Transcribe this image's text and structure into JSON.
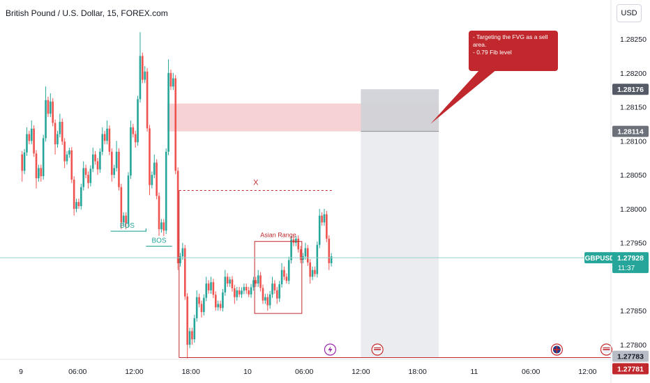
{
  "header": {
    "title": "British Pound / U.S. Dollar, 15, FOREX.com",
    "currency": "USD"
  },
  "chart_data": {
    "type": "candlestick",
    "symbol": "GBPUSD",
    "interval": "15",
    "ylim": [
      1.27715,
      1.28365
    ],
    "y_ticks": [
      "1.28250",
      "1.28200",
      "1.28150",
      "1.28100",
      "1.28050",
      "1.28000",
      "1.27950",
      "1.27850",
      "1.27800"
    ],
    "x_ticks": [
      {
        "label": "9",
        "bar": 0
      },
      {
        "label": "06:00",
        "bar": 24
      },
      {
        "label": "12:00",
        "bar": 48
      },
      {
        "label": "18:00",
        "bar": 72
      },
      {
        "label": "10",
        "bar": 96
      },
      {
        "label": "06:00",
        "bar": 120
      },
      {
        "label": "12:00",
        "bar": 144
      },
      {
        "label": "18:00",
        "bar": 168
      },
      {
        "label": "11",
        "bar": 192
      },
      {
        "label": "06:00",
        "bar": 216
      },
      {
        "label": "12:00",
        "bar": 240
      }
    ],
    "current": {
      "symbol": "GBPUSD",
      "price": "1.27928",
      "countdown": "11:37"
    },
    "price_labels": [
      {
        "value": "1.28176",
        "y": 1.28176,
        "color": "#555b66"
      },
      {
        "value": "1.28114",
        "y": 1.28114,
        "color": "#6b7079"
      },
      {
        "value": "1.27783",
        "y": 1.27783,
        "color": "#b8bcc4"
      },
      {
        "value": "1.27781",
        "y": 1.27781,
        "color": "#c0282d"
      }
    ],
    "candles_hourly": [
      {
        "t": 0,
        "o": 1.2808,
        "h": 1.2812,
        "l": 1.2804,
        "c": 1.281
      },
      {
        "t": 4,
        "o": 1.281,
        "h": 1.2813,
        "l": 1.2803,
        "c": 1.2806
      },
      {
        "t": 8,
        "o": 1.2806,
        "h": 1.2818,
        "l": 1.2804,
        "c": 1.2814
      },
      {
        "t": 12,
        "o": 1.2814,
        "h": 1.2817,
        "l": 1.2808,
        "c": 1.2811
      },
      {
        "t": 16,
        "o": 1.2811,
        "h": 1.2814,
        "l": 1.2806,
        "c": 1.2808
      },
      {
        "t": 20,
        "o": 1.2808,
        "h": 1.2809,
        "l": 1.2799,
        "c": 1.2801
      },
      {
        "t": 24,
        "o": 1.2801,
        "h": 1.2807,
        "l": 1.28,
        "c": 1.2805
      },
      {
        "t": 28,
        "o": 1.2805,
        "h": 1.2809,
        "l": 1.2803,
        "c": 1.2807
      },
      {
        "t": 32,
        "o": 1.2807,
        "h": 1.2812,
        "l": 1.2805,
        "c": 1.281
      },
      {
        "t": 36,
        "o": 1.281,
        "h": 1.2813,
        "l": 1.2804,
        "c": 1.2806
      },
      {
        "t": 40,
        "o": 1.2806,
        "h": 1.281,
        "l": 1.2797,
        "c": 1.2799
      },
      {
        "t": 44,
        "o": 1.2799,
        "h": 1.2813,
        "l": 1.2797,
        "c": 1.2811
      },
      {
        "t": 48,
        "o": 1.2811,
        "h": 1.2826,
        "l": 1.2809,
        "c": 1.2819
      },
      {
        "t": 52,
        "o": 1.2819,
        "h": 1.2821,
        "l": 1.2802,
        "c": 1.2805
      },
      {
        "t": 56,
        "o": 1.2805,
        "h": 1.2808,
        "l": 1.2796,
        "c": 1.2798
      },
      {
        "t": 60,
        "o": 1.2798,
        "h": 1.2822,
        "l": 1.2796,
        "c": 1.2818
      },
      {
        "t": 64,
        "o": 1.2818,
        "h": 1.282,
        "l": 1.2791,
        "c": 1.2793
      },
      {
        "t": 68,
        "o": 1.2793,
        "h": 1.2795,
        "l": 1.2778,
        "c": 1.2782
      },
      {
        "t": 72,
        "o": 1.2782,
        "h": 1.2788,
        "l": 1.278,
        "c": 1.2786
      },
      {
        "t": 76,
        "o": 1.2786,
        "h": 1.279,
        "l": 1.2784,
        "c": 1.2788
      },
      {
        "t": 80,
        "o": 1.2788,
        "h": 1.279,
        "l": 1.2785,
        "c": 1.2786
      },
      {
        "t": 84,
        "o": 1.2786,
        "h": 1.2791,
        "l": 1.2785,
        "c": 1.2789
      },
      {
        "t": 88,
        "o": 1.2789,
        "h": 1.279,
        "l": 1.2786,
        "c": 1.2788
      },
      {
        "t": 92,
        "o": 1.2788,
        "h": 1.2789,
        "l": 1.2787,
        "c": 1.2788
      },
      {
        "t": 96,
        "o": 1.2788,
        "h": 1.279,
        "l": 1.2787,
        "c": 1.2789
      },
      {
        "t": 100,
        "o": 1.2789,
        "h": 1.2791,
        "l": 1.2786,
        "c": 1.2787
      },
      {
        "t": 104,
        "o": 1.2787,
        "h": 1.279,
        "l": 1.2785,
        "c": 1.2788
      },
      {
        "t": 108,
        "o": 1.2788,
        "h": 1.2792,
        "l": 1.2786,
        "c": 1.279
      },
      {
        "t": 112,
        "o": 1.279,
        "h": 1.2796,
        "l": 1.2789,
        "c": 1.2795
      },
      {
        "t": 116,
        "o": 1.2795,
        "h": 1.2796,
        "l": 1.2792,
        "c": 1.2793
      },
      {
        "t": 120,
        "o": 1.2793,
        "h": 1.2795,
        "l": 1.2789,
        "c": 1.2791
      },
      {
        "t": 124,
        "o": 1.2791,
        "h": 1.28,
        "l": 1.279,
        "c": 1.2798
      },
      {
        "t": 128,
        "o": 1.2798,
        "h": 1.28,
        "l": 1.2791,
        "c": 1.2793
      }
    ],
    "annotations": {
      "bos_labels": [
        "BOS",
        "BOS"
      ],
      "asian_range_label": "Asian Range",
      "x_marker": "X",
      "callout_text": [
        "- Targeting the FVG as a sell",
        "area.",
        "- 0.79 Fib level"
      ],
      "fvg_zone": [
        1.28114,
        1.28155
      ],
      "projection_top": 1.28176,
      "projection_bottom": 1.27781,
      "asian_range": [
        1.27846,
        1.27952
      ],
      "dashed_level": 1.28027,
      "low_level": 1.27781,
      "bos_levels": [
        1.27967,
        1.27945
      ]
    },
    "event_markers": [
      {
        "bar": 131,
        "kind": "bolt",
        "color": "#9c27b0"
      },
      {
        "bar": 151,
        "kind": "flag-us",
        "color": "#c62828"
      },
      {
        "bar": 227,
        "kind": "flag-uk",
        "color": "#c62828"
      },
      {
        "bar": 248,
        "kind": "flag-us",
        "color": "#c62828"
      }
    ],
    "colors": {
      "up": "#26a69a",
      "down": "#ef5350",
      "bos": "#26a69a",
      "accent_red": "#c0282d",
      "current_price": "#26a69a",
      "fvg": "#f6cdd0"
    }
  }
}
